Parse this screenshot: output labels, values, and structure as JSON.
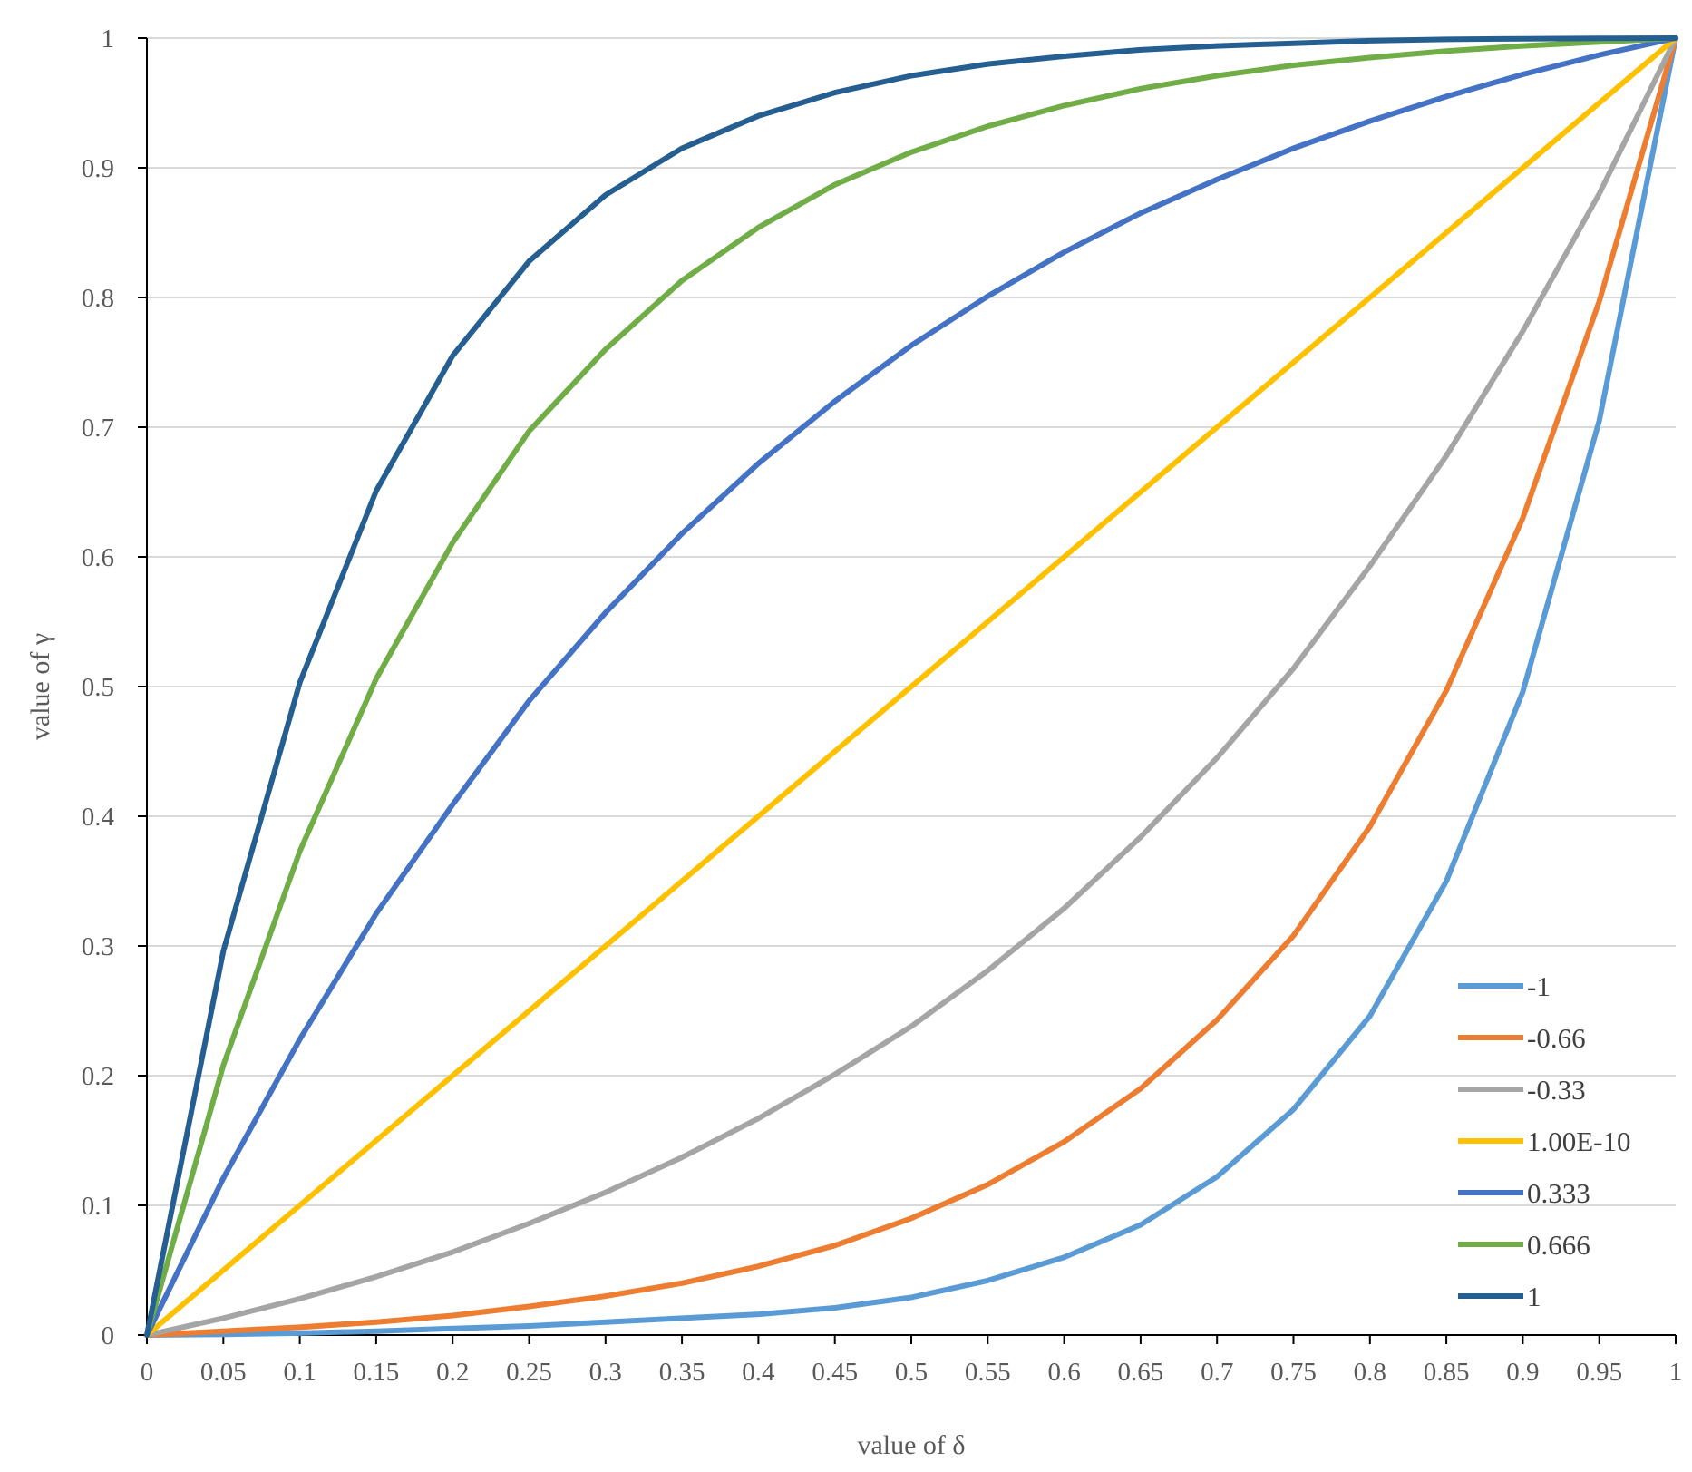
{
  "chart_data": {
    "type": "line",
    "title": "",
    "xlabel": "value of δ",
    "ylabel": "value of γ",
    "xlim": [
      0,
      1
    ],
    "ylim": [
      0,
      1
    ],
    "grid": "horizontal",
    "legend_position": "bottom-right",
    "x": [
      0,
      0.05,
      0.1,
      0.15,
      0.2,
      0.25,
      0.3,
      0.35,
      0.4,
      0.45,
      0.5,
      0.55,
      0.6,
      0.65,
      0.7,
      0.75,
      0.8,
      0.85,
      0.9,
      0.95,
      1
    ],
    "x_tick_labels": [
      "0",
      "0.05",
      "0.1",
      "0.15",
      "0.2",
      "0.25",
      "0.3",
      "0.35",
      "0.4",
      "0.45",
      "0.5",
      "0.55",
      "0.6",
      "0.65",
      "0.7",
      "0.75",
      "0.8",
      "0.85",
      "0.9",
      "0.95",
      "1"
    ],
    "y_ticks": [
      0,
      0.1,
      0.2,
      0.3,
      0.4,
      0.5,
      0.6,
      0.7,
      0.8,
      0.9,
      1
    ],
    "y_tick_labels": [
      "0",
      "0.1",
      "0.2",
      "0.3",
      "0.4",
      "0.5",
      "0.6",
      "0.7",
      "0.8",
      "0.9",
      "1"
    ],
    "series": [
      {
        "name": "-1",
        "color": "#5B9BD5",
        "values": [
          0,
          0.0005,
          0.0015,
          0.003,
          0.005,
          0.007,
          0.01,
          0.013,
          0.016,
          0.021,
          0.029,
          0.042,
          0.06,
          0.085,
          0.122,
          0.174,
          0.246,
          0.35,
          0.496,
          0.705,
          1
        ]
      },
      {
        "name": "-0.66",
        "color": "#ED7D31",
        "values": [
          0,
          0.003,
          0.006,
          0.01,
          0.015,
          0.022,
          0.03,
          0.04,
          0.053,
          0.069,
          0.09,
          0.116,
          0.149,
          0.19,
          0.243,
          0.308,
          0.392,
          0.497,
          0.63,
          0.797,
          1
        ]
      },
      {
        "name": "-0.33",
        "color": "#A5A5A5",
        "values": [
          0,
          0.013,
          0.028,
          0.045,
          0.064,
          0.086,
          0.11,
          0.137,
          0.167,
          0.201,
          0.238,
          0.281,
          0.329,
          0.384,
          0.445,
          0.514,
          0.593,
          0.678,
          0.774,
          0.88,
          1
        ]
      },
      {
        "name": "1.00E-10",
        "color": "#FFC000",
        "values": [
          0,
          0.05,
          0.1,
          0.15,
          0.2,
          0.25,
          0.3,
          0.35,
          0.4,
          0.45,
          0.5,
          0.55,
          0.6,
          0.65,
          0.7,
          0.75,
          0.8,
          0.85,
          0.9,
          0.95,
          1
        ]
      },
      {
        "name": "0.333",
        "color": "#4472C4",
        "values": [
          0,
          0.121,
          0.228,
          0.325,
          0.409,
          0.489,
          0.557,
          0.618,
          0.672,
          0.72,
          0.763,
          0.801,
          0.835,
          0.865,
          0.891,
          0.915,
          0.936,
          0.955,
          0.972,
          0.987,
          1
        ]
      },
      {
        "name": "0.666",
        "color": "#70AD47",
        "values": [
          0,
          0.208,
          0.373,
          0.506,
          0.611,
          0.697,
          0.76,
          0.813,
          0.854,
          0.887,
          0.912,
          0.932,
          0.948,
          0.961,
          0.971,
          0.979,
          0.985,
          0.99,
          0.994,
          0.997,
          1
        ]
      },
      {
        "name": "1",
        "color": "#255E91",
        "values": [
          0,
          0.296,
          0.503,
          0.651,
          0.755,
          0.828,
          0.879,
          0.915,
          0.94,
          0.958,
          0.971,
          0.98,
          0.986,
          0.991,
          0.994,
          0.996,
          0.998,
          0.999,
          0.9995,
          0.9998,
          1
        ]
      }
    ]
  }
}
